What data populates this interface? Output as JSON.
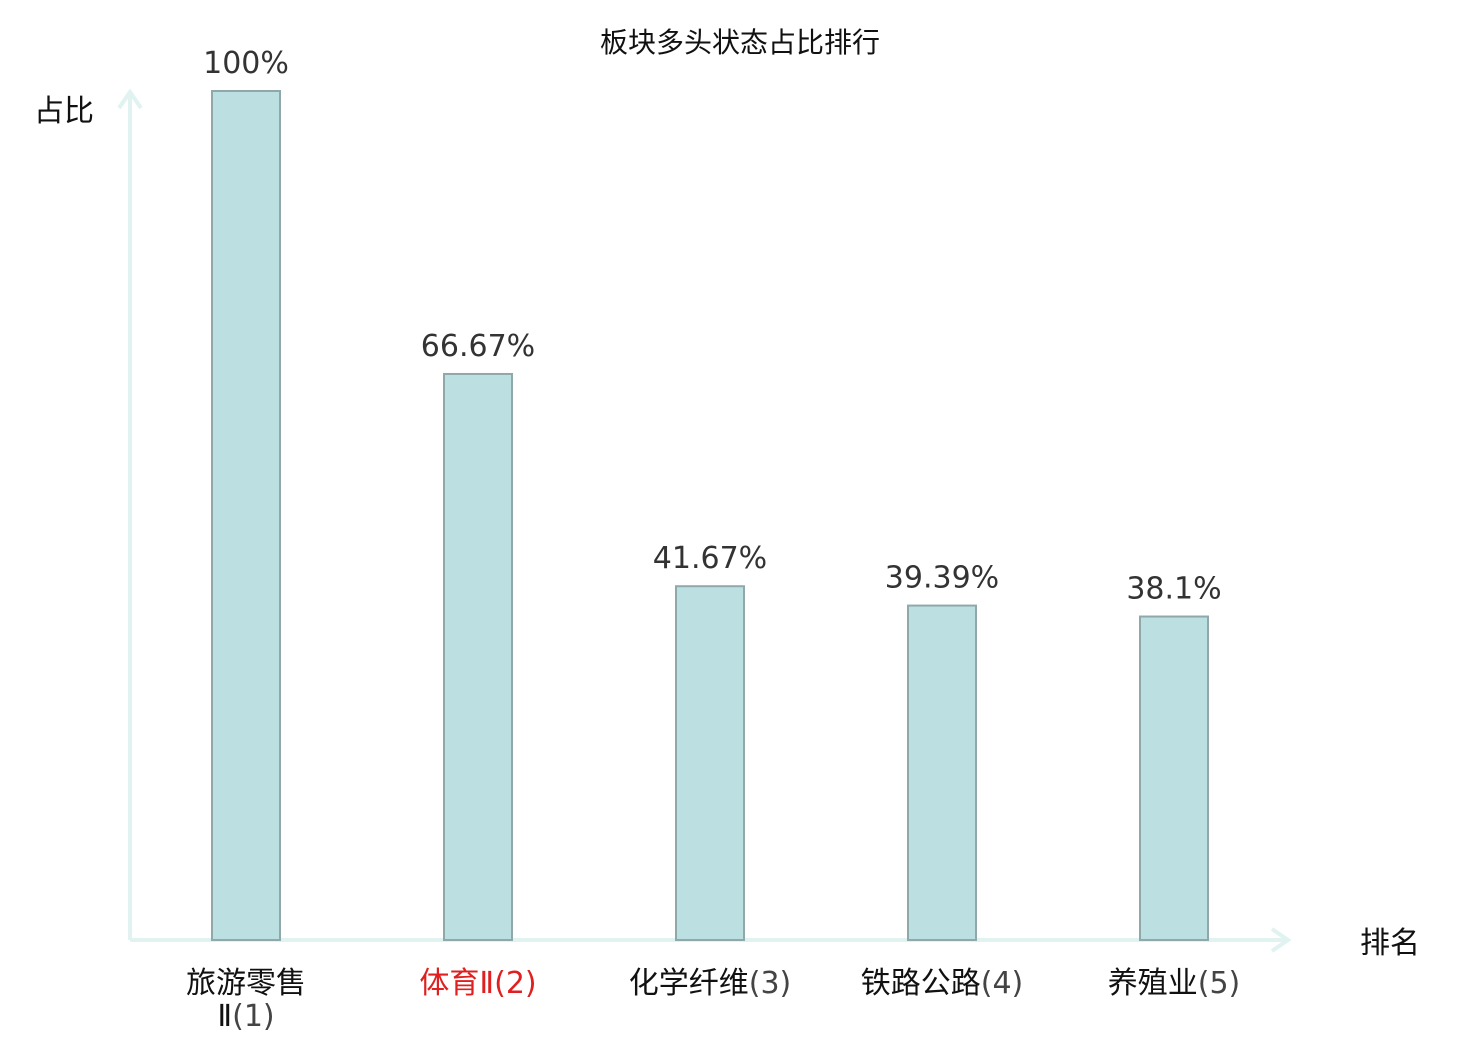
{
  "chart_data": {
    "type": "bar",
    "title": "板块多头状态占比排行",
    "xlabel": "排名",
    "ylabel": "占比",
    "ylim": [
      0,
      100
    ],
    "grid": false,
    "categories": [
      {
        "name": "旅游零售Ⅱ",
        "rank": "(1)",
        "highlight": false
      },
      {
        "name": "体育Ⅱ",
        "rank": "(2)",
        "highlight": true
      },
      {
        "name": "化学纤维",
        "rank": "(3)",
        "highlight": false
      },
      {
        "name": "铁路公路",
        "rank": "(4)",
        "highlight": false
      },
      {
        "name": "养殖业",
        "rank": "(5)",
        "highlight": false
      }
    ],
    "values": [
      100,
      66.67,
      41.67,
      39.39,
      38.1
    ],
    "value_labels": [
      "100%",
      "66.67%",
      "41.67%",
      "39.39%",
      "38.1%"
    ],
    "colors": {
      "bar_fill": "#bce0e2",
      "bar_stroke": "#8fa9aa",
      "axis": "#e0f3f0",
      "highlight_text": "#e02020",
      "rank_text": "#444444",
      "category_text": "#111111"
    }
  }
}
